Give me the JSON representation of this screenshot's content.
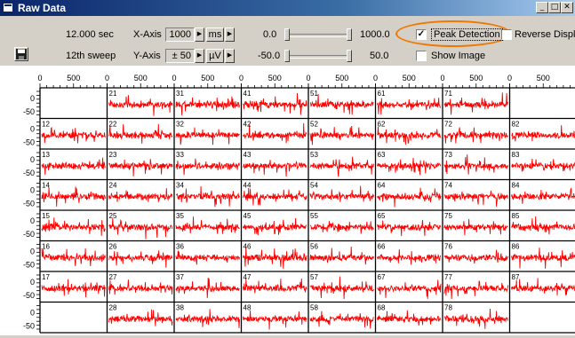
{
  "window": {
    "title": "Raw Data",
    "buttons": [
      "_",
      "□",
      "✕"
    ]
  },
  "toolbar": {
    "time_value": "12.000 sec",
    "sweep_value": "12th sweep",
    "x_axis": {
      "label": "X-Axis",
      "value": "1000",
      "unit": "ms",
      "spin": "▶"
    },
    "y_axis": {
      "label": "Y-Axis",
      "value": "± 50",
      "unit": "µV",
      "spin": "▶"
    },
    "range1": {
      "min": "0.0",
      "max": "1000.0"
    },
    "range2": {
      "min": "-50.0",
      "max": "50.0"
    },
    "peak_detection": {
      "label": "Peak Detection",
      "checked": true
    },
    "reverse_display": {
      "label": "Reverse Display",
      "checked": false
    },
    "show_image": {
      "label": "Show Image",
      "checked": false
    },
    "save_icon": "floppy-disk-icon",
    "highlight_color": "#f07800"
  },
  "grid": {
    "x_ticks": [
      "0",
      "500"
    ],
    "y_ticks": [
      "0",
      "-50"
    ],
    "trace_color": "#ff0000",
    "cells": [
      [
        "",
        "21",
        "31",
        "41",
        "51",
        "61",
        "71",
        ""
      ],
      [
        "12",
        "22",
        "32",
        "42",
        "52",
        "62",
        "72",
        "82"
      ],
      [
        "13",
        "23",
        "33",
        "43",
        "53",
        "63",
        "73",
        "83"
      ],
      [
        "14",
        "24",
        "34",
        "44",
        "54",
        "64",
        "74",
        "84"
      ],
      [
        "15",
        "25",
        "35",
        "45",
        "55",
        "65",
        "75",
        "85"
      ],
      [
        "16",
        "26",
        "36",
        "46",
        "56",
        "66",
        "76",
        "86"
      ],
      [
        "17",
        "27",
        "37",
        "47",
        "57",
        "67",
        "77",
        "87"
      ],
      [
        "",
        "28",
        "38",
        "48",
        "58",
        "68",
        "78",
        ""
      ]
    ]
  }
}
